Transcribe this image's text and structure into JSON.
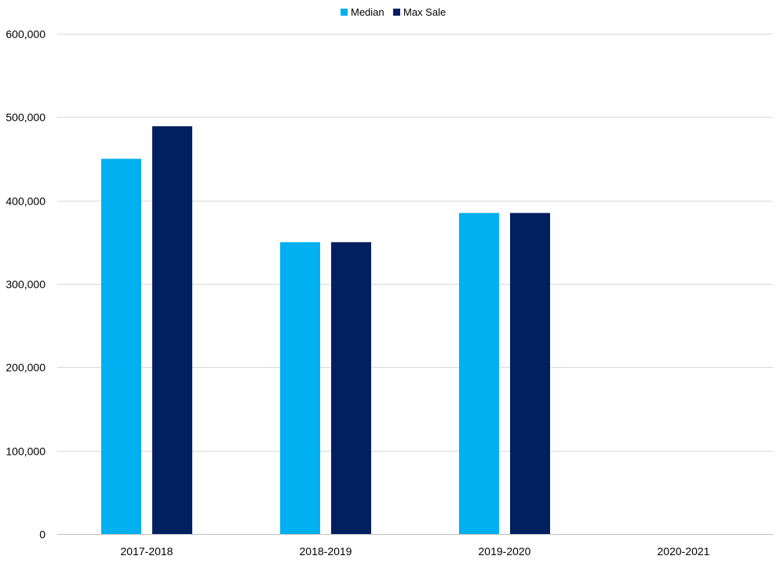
{
  "chart_data": {
    "type": "bar",
    "title": "",
    "xlabel": "",
    "ylabel": "",
    "categories": [
      "2017-2018",
      "2018-2019",
      "2019-2020",
      "2020-2021"
    ],
    "series": [
      {
        "name": "Median",
        "color": "#00B0F0",
        "values": [
          450000,
          350000,
          385000,
          null
        ]
      },
      {
        "name": "Max Sale",
        "color": "#002060",
        "values": [
          489000,
          350000,
          385000,
          null
        ]
      }
    ],
    "ylim": [
      0,
      600000
    ],
    "yticks": [
      0,
      100000,
      200000,
      300000,
      400000,
      500000,
      600000
    ],
    "ytick_labels": [
      "0",
      "100,000",
      "200,000",
      "300,000",
      "400,000",
      "500,000",
      "600,000"
    ],
    "grid": true,
    "legend_position": "top-center"
  }
}
